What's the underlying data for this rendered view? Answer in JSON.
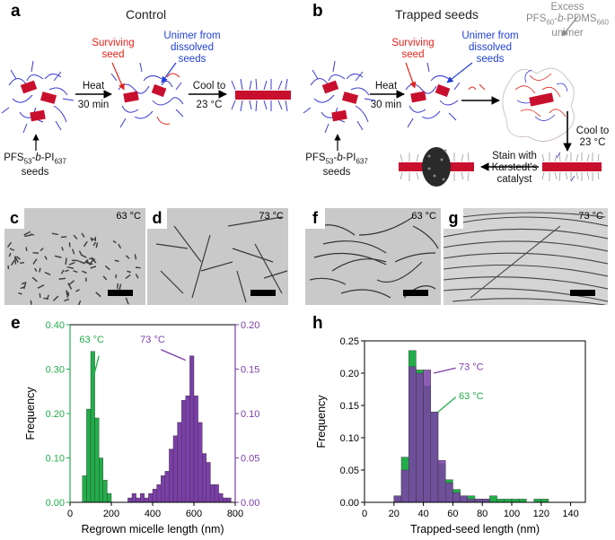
{
  "panels": {
    "a": {
      "letter": "a",
      "title": "Control"
    },
    "b": {
      "letter": "b",
      "title": "Trapped seeds"
    }
  },
  "schematic": {
    "surviving_seed": [
      "Surviving",
      "seed"
    ],
    "unimer_dissolved": [
      "Unimer from",
      "dissolved",
      "seeds"
    ],
    "excess_unimer": [
      "Excess",
      "PFS60-b-PDMS660",
      "unimer"
    ],
    "heat": "Heat",
    "heat_time": "30 min",
    "cool_to": "Cool to",
    "cool_temp": "23 °C",
    "stain_line1": "Stain with",
    "stain_line2": "Karstedt's",
    "stain_line3": "catalyst",
    "seed_polymer": "PFS53-b-PI637",
    "seeds": "seeds"
  },
  "micrographs": [
    {
      "letter": "c",
      "temp": "63 °C"
    },
    {
      "letter": "d",
      "temp": "73 °C"
    },
    {
      "letter": "f",
      "temp": "63 °C"
    },
    {
      "letter": "g",
      "temp": "73 °C"
    }
  ],
  "colors": {
    "green": "#22ad4a",
    "purple": "#7b3fa8",
    "red": "#e2231a",
    "blue": "#1f3fd6"
  },
  "chart_data": [
    {
      "letter": "e",
      "type": "bar",
      "xlabel": "Regrown micelle length (nm)",
      "ylabel": "Frequency",
      "xlim": [
        0,
        800
      ],
      "xticks": [
        0,
        200,
        400,
        600,
        800
      ],
      "ylim_left": [
        0,
        0.4
      ],
      "yticks_left": [
        "0.00",
        "0.10",
        "0.20",
        "0.30",
        "0.40"
      ],
      "ylim_right": [
        0,
        0.2
      ],
      "yticks_right": [
        "0.00",
        "0.05",
        "0.10",
        "0.15",
        "0.20"
      ],
      "bin_width": 20,
      "series": [
        {
          "name": "63 °C",
          "axis": "left",
          "color": "#22ad4a",
          "bins": [
            60,
            80,
            100,
            120,
            140,
            160,
            180
          ],
          "values": [
            0.06,
            0.21,
            0.34,
            0.19,
            0.1,
            0.05,
            0.02
          ]
        },
        {
          "name": "73 °C",
          "axis": "right",
          "color": "#7b3fa8",
          "bins": [
            280,
            300,
            320,
            340,
            360,
            380,
            400,
            420,
            440,
            460,
            480,
            500,
            520,
            540,
            560,
            580,
            600,
            620,
            640,
            660,
            680,
            700,
            720,
            740,
            760
          ],
          "values": [
            0.005,
            0.01,
            0.005,
            0.01,
            0.005,
            0.01,
            0.015,
            0.02,
            0.03,
            0.035,
            0.06,
            0.075,
            0.09,
            0.115,
            0.12,
            0.165,
            0.12,
            0.09,
            0.055,
            0.045,
            0.02,
            0.02,
            0.01,
            0.005,
            0.005
          ]
        }
      ]
    },
    {
      "letter": "h",
      "type": "bar",
      "xlabel": "Trapped-seed length (nm)",
      "ylabel": "Frequency",
      "xlim": [
        0,
        150
      ],
      "xticks": [
        0,
        20,
        40,
        60,
        80,
        100,
        120,
        140
      ],
      "ylim": [
        0,
        0.25
      ],
      "yticks": [
        "0.00",
        "0.05",
        "0.10",
        "0.15",
        "0.20",
        "0.25"
      ],
      "bin_width": 5,
      "series": [
        {
          "name": "63 °C",
          "color": "#22ad4a",
          "bins": [
            20,
            25,
            30,
            35,
            40,
            45,
            50,
            55,
            60,
            65,
            70,
            75,
            80,
            85,
            90,
            95,
            100,
            105,
            115,
            120
          ],
          "values": [
            0.01,
            0.07,
            0.235,
            0.205,
            0.18,
            0.14,
            0.06,
            0.035,
            0.02,
            0.01,
            0.01,
            0.005,
            0.005,
            0.01,
            0.005,
            0.005,
            0.005,
            0.005,
            0.005,
            0.005
          ]
        },
        {
          "name": "73 °C",
          "color": "#7b3fa8",
          "bins": [
            20,
            25,
            30,
            35,
            40,
            45,
            50,
            55,
            60,
            65,
            70,
            75,
            80
          ],
          "values": [
            0.01,
            0.05,
            0.21,
            0.2,
            0.205,
            0.14,
            0.065,
            0.03,
            0.015,
            0.01,
            0.005,
            0.005,
            0.005
          ]
        }
      ]
    }
  ]
}
